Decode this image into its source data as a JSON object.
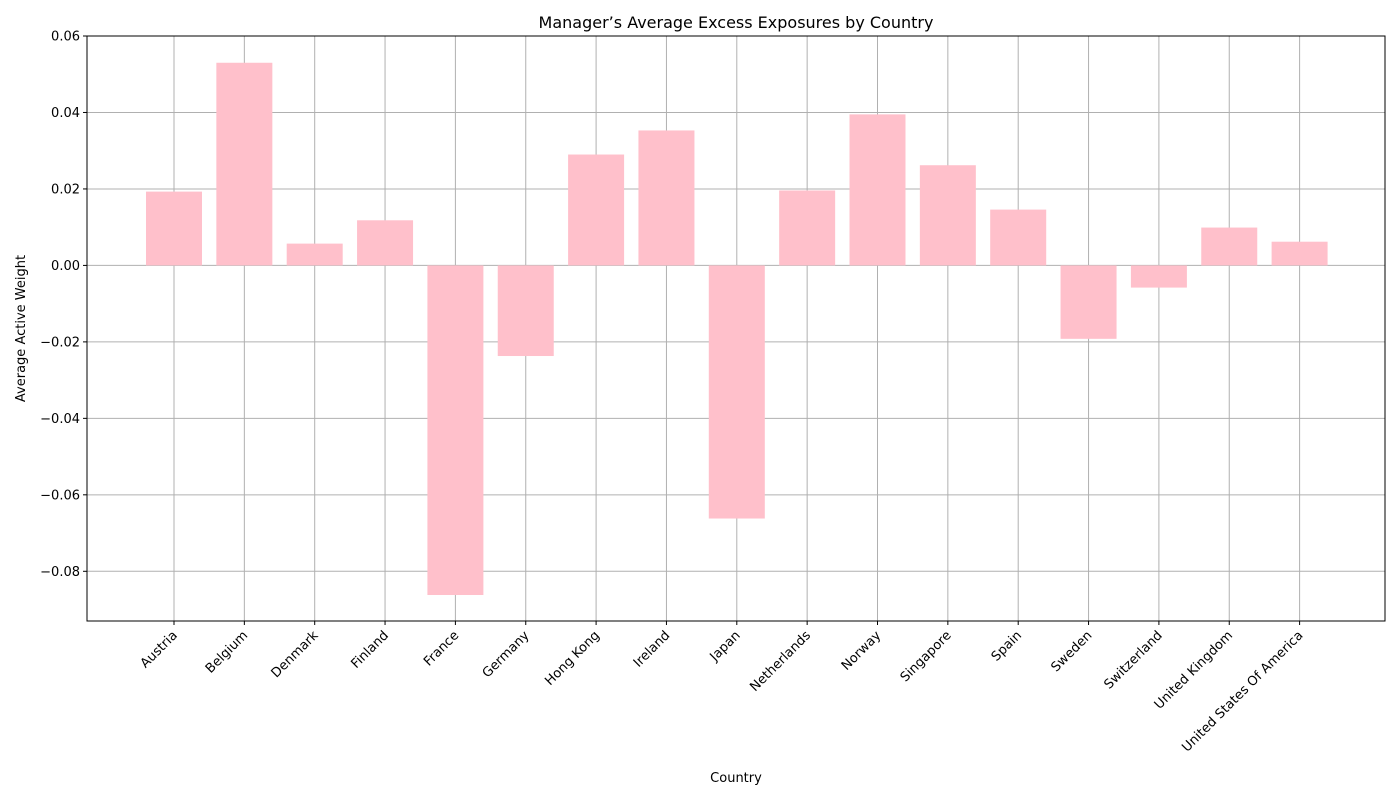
{
  "chart_data": {
    "type": "bar",
    "title": "Manager’s Average Excess Exposures by Country",
    "xlabel": "Country",
    "ylabel": "Average Active Weight",
    "categories": [
      "Austria",
      "Belgium",
      "Denmark",
      "Finland",
      "France",
      "Germany",
      "Hong Kong",
      "Ireland",
      "Japan",
      "Netherlands",
      "Norway",
      "Singapore",
      "Spain",
      "Sweden",
      "Switzerland",
      "United Kingdom",
      "United States Of America"
    ],
    "values": [
      0.0193,
      0.053,
      0.0057,
      0.0118,
      -0.0862,
      -0.0237,
      0.029,
      0.0353,
      -0.0662,
      0.0196,
      0.0395,
      0.0262,
      0.0146,
      -0.0192,
      -0.0058,
      0.0099,
      0.0062
    ],
    "ylim": [
      -0.093,
      0.06
    ],
    "yticks": [
      -0.08,
      -0.06,
      -0.04,
      -0.02,
      0.0,
      0.02,
      0.04,
      0.06
    ],
    "ytick_labels": [
      "−0.08",
      "−0.06",
      "−0.04",
      "−0.02",
      "0.00",
      "0.02",
      "0.04",
      "0.06"
    ],
    "grid": true,
    "bar_color": "#ffc0cb",
    "grid_color": "#b0b0b0"
  }
}
